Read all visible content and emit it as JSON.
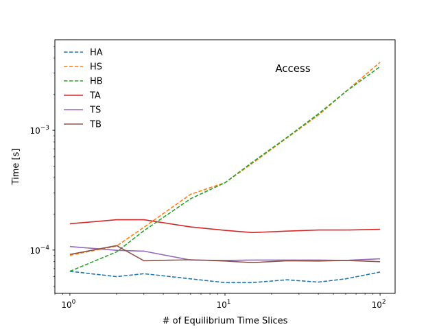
{
  "chart_data": {
    "type": "line",
    "title": "Access",
    "xlabel": "# of Equilibrium Time Slices",
    "ylabel": "Time [s]",
    "xscale": "log",
    "yscale": "log",
    "xlim": [
      0.8,
      125
    ],
    "ylim": [
      4.35e-05,
      0.0057
    ],
    "x": [
      1,
      2,
      3,
      6,
      10,
      15,
      25,
      40,
      60,
      100
    ],
    "x_ticks": [
      {
        "value": 1,
        "base": "10",
        "exp": "0"
      },
      {
        "value": 10,
        "base": "10",
        "exp": "1"
      },
      {
        "value": 100,
        "base": "10",
        "exp": "2"
      }
    ],
    "y_ticks": [
      {
        "value": 0.0001,
        "base": "10",
        "exp": "−4"
      },
      {
        "value": 0.001,
        "base": "10",
        "exp": "−3"
      }
    ],
    "legend_position": "top-left",
    "series": [
      {
        "name": "HA",
        "color": "#1f77b4",
        "dash": true,
        "values": [
          6.65e-05,
          6e-05,
          6.35e-05,
          5.75e-05,
          5.35e-05,
          5.35e-05,
          5.65e-05,
          5.4e-05,
          5.75e-05,
          6.55e-05
        ]
      },
      {
        "name": "HS",
        "color": "#ff7f0e",
        "dash": true,
        "values": [
          9.05e-05,
          0.000108,
          0.000155,
          0.000292,
          0.000365,
          0.00053,
          0.00086,
          0.00134,
          0.0021,
          0.0037
        ]
      },
      {
        "name": "HB",
        "color": "#2ca02c",
        "dash": true,
        "values": [
          6.65e-05,
          9.65e-05,
          0.000145,
          0.000268,
          0.000365,
          0.00054,
          0.00087,
          0.00137,
          0.0021,
          0.0034
        ]
      },
      {
        "name": "TA",
        "color": "#d62728",
        "dash": false,
        "values": [
          0.000166,
          0.000179,
          0.000179,
          0.000156,
          0.000146,
          0.00014,
          0.000144,
          0.000147,
          0.000147,
          0.000149
        ]
      },
      {
        "name": "TS",
        "color": "#9467bd",
        "dash": false,
        "values": [
          0.000107,
          9.95e-05,
          9.8e-05,
          8.25e-05,
          8.2e-05,
          8.25e-05,
          8.25e-05,
          8.25e-05,
          8.2e-05,
          8.45e-05
        ]
      },
      {
        "name": "TB",
        "color": "#8c564b",
        "dash": false,
        "values": [
          9.2e-05,
          0.000109,
          8.15e-05,
          8.3e-05,
          8.1e-05,
          7.85e-05,
          8.15e-05,
          8.1e-05,
          8.2e-05,
          8e-05
        ]
      }
    ]
  }
}
